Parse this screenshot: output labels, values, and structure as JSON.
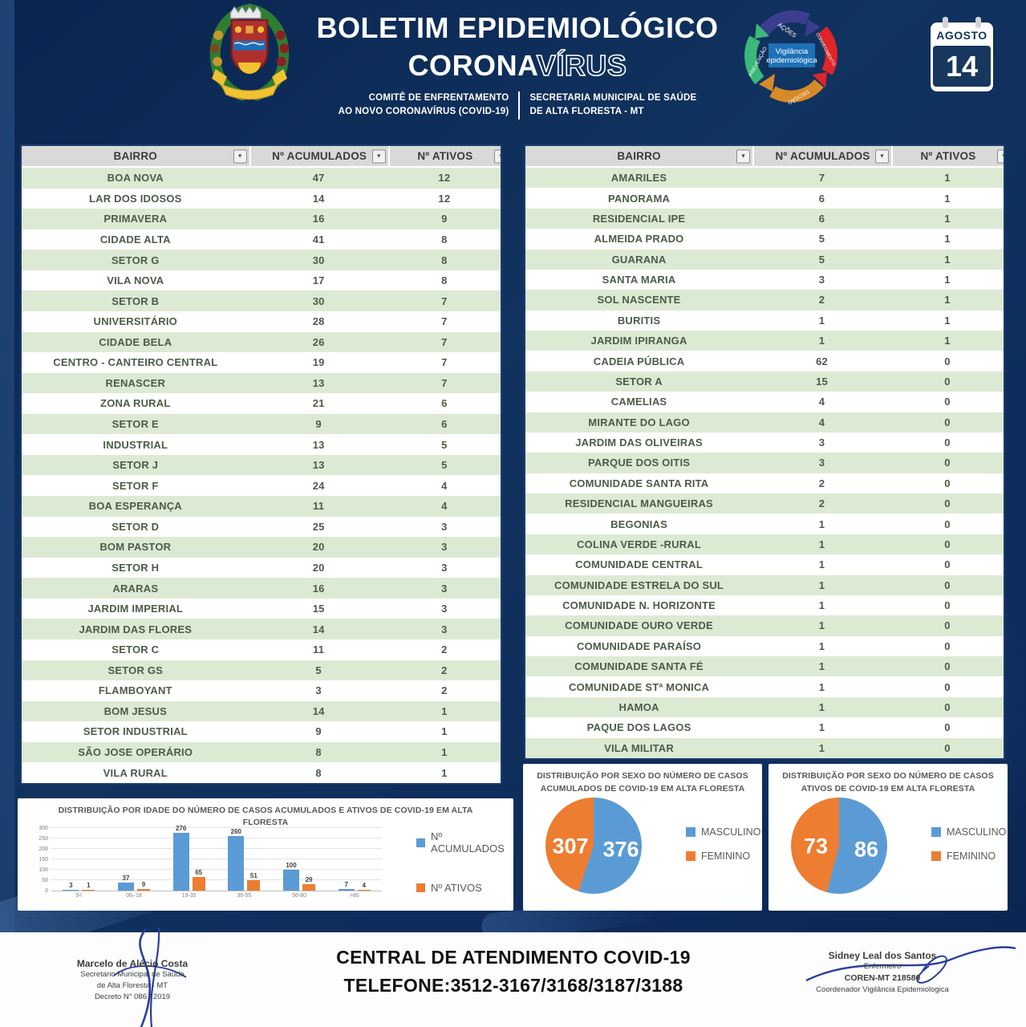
{
  "header": {
    "title_line1": "BOLETIM EPIDEMIOLÓGICO",
    "title_line2_solid": "CORONA",
    "title_line2_outline": "VÍRUS",
    "subtitle_left_line1": "COMITÊ DE ENFRENTAMENTO",
    "subtitle_left_line2": "AO NOVO CORONAVÍRUS (COVID-19)",
    "subtitle_right_line1": "SECRETARIA MUNICIPAL DE SAÚDE",
    "subtitle_right_line2": "DE ALTA FLORESTA - MT",
    "cycle_logo": {
      "center_line1": "Vigilância",
      "center_line2": "epidemiológica",
      "labels": [
        "AÇÕES",
        "CONHECIMENTO",
        "DECISÃO",
        "PREVENÇÃO"
      ]
    },
    "calendar": {
      "month": "AGOSTO",
      "day": "14"
    }
  },
  "tables": {
    "headers": {
      "bairro": "BAIRRO",
      "acumulados": "Nº ACUMULADOS",
      "ativos": "Nº ATIVOS"
    },
    "left_rows": [
      [
        "BOA NOVA",
        47,
        12
      ],
      [
        "LAR DOS IDOSOS",
        14,
        12
      ],
      [
        "PRIMAVERA",
        16,
        9
      ],
      [
        "CIDADE ALTA",
        41,
        8
      ],
      [
        "SETOR G",
        30,
        8
      ],
      [
        "VILA NOVA",
        17,
        8
      ],
      [
        "SETOR B",
        30,
        7
      ],
      [
        "UNIVERSITÁRIO",
        28,
        7
      ],
      [
        "CIDADE BELA",
        26,
        7
      ],
      [
        "CENTRO - CANTEIRO CENTRAL",
        19,
        7
      ],
      [
        "RENASCER",
        13,
        7
      ],
      [
        "ZONA RURAL",
        21,
        6
      ],
      [
        "SETOR E",
        9,
        6
      ],
      [
        "INDUSTRIAL",
        13,
        5
      ],
      [
        "SETOR J",
        13,
        5
      ],
      [
        "SETOR F",
        24,
        4
      ],
      [
        "BOA ESPERANÇA",
        11,
        4
      ],
      [
        "SETOR D",
        25,
        3
      ],
      [
        "BOM PASTOR",
        20,
        3
      ],
      [
        "SETOR H",
        20,
        3
      ],
      [
        "ARARAS",
        16,
        3
      ],
      [
        "JARDIM IMPERIAL",
        15,
        3
      ],
      [
        "JARDIM DAS FLORES",
        14,
        3
      ],
      [
        "SETOR C",
        11,
        2
      ],
      [
        "SETOR GS",
        5,
        2
      ],
      [
        "FLAMBOYANT",
        3,
        2
      ],
      [
        "BOM JESUS",
        14,
        1
      ],
      [
        "SETOR INDUSTRIAL",
        9,
        1
      ],
      [
        "SÃO JOSE OPERÁRIO",
        8,
        1
      ],
      [
        "VILA RURAL",
        8,
        1
      ]
    ],
    "right_rows": [
      [
        "AMARILES",
        7,
        1
      ],
      [
        "PANORAMA",
        6,
        1
      ],
      [
        "RESIDENCIAL IPE",
        6,
        1
      ],
      [
        "ALMEIDA PRADO",
        5,
        1
      ],
      [
        "GUARANA",
        5,
        1
      ],
      [
        "SANTA MARIA",
        3,
        1
      ],
      [
        "SOL NASCENTE",
        2,
        1
      ],
      [
        "BURITIS",
        1,
        1
      ],
      [
        "JARDIM IPIRANGA",
        1,
        1
      ],
      [
        "CADEIA PÚBLICA",
        62,
        0
      ],
      [
        "SETOR A",
        15,
        0
      ],
      [
        "CAMELIAS",
        4,
        0
      ],
      [
        "MIRANTE DO LAGO",
        4,
        0
      ],
      [
        "JARDIM DAS OLIVEIRAS",
        3,
        0
      ],
      [
        "PARQUE DOS OITIS",
        3,
        0
      ],
      [
        "COMUNIDADE SANTA RITA",
        2,
        0
      ],
      [
        "RESIDENCIAL MANGUEIRAS",
        2,
        0
      ],
      [
        "BEGONIAS",
        1,
        0
      ],
      [
        "COLINA VERDE -RURAL",
        1,
        0
      ],
      [
        "COMUNIDADE CENTRAL",
        1,
        0
      ],
      [
        "COMUNIDADE ESTRELA DO SUL",
        1,
        0
      ],
      [
        "COMUNIDADE N. HORIZONTE",
        1,
        0
      ],
      [
        "COMUNIDADE OURO VERDE",
        1,
        0
      ],
      [
        "COMUNIDADE PARAÍSO",
        1,
        0
      ],
      [
        "COMUNIDADE SANTA FÉ",
        1,
        0
      ],
      [
        "COMUNIDADE STª MONICA",
        1,
        0
      ],
      [
        "HAMOA",
        1,
        0
      ],
      [
        "PAQUE DOS LAGOS",
        1,
        0
      ],
      [
        "VILA MILITAR",
        1,
        0
      ]
    ]
  },
  "chart_data": [
    {
      "type": "bar",
      "title": "DISTRIBUIÇÃO POR IDADE DO NÚMERO DE CASOS ACUMULADOS E ATIVOS DE COVID-19 EM ALTA FLORESTA",
      "categories": [
        "5<",
        "06–18",
        "19-35",
        "36-55",
        "56-80",
        ">80"
      ],
      "series": [
        {
          "name": "Nº ACUMULADOS",
          "color": "#5b9bd5",
          "values": [
            3,
            37,
            276,
            260,
            100,
            7
          ]
        },
        {
          "name": "Nº ATIVOS",
          "color": "#ed7d31",
          "values": [
            1,
            9,
            65,
            51,
            29,
            4
          ]
        }
      ],
      "xlabel": "",
      "ylabel": "",
      "ylim": [
        0,
        300
      ],
      "yticks": [
        0,
        50,
        100,
        150,
        200,
        250,
        300
      ],
      "grid": true,
      "legend_position": "right"
    },
    {
      "type": "pie",
      "title_line1": "DISTRIBUIÇÃO POR SEXO DO NÚMERO DE CASOS",
      "title_line2": "ACUMULADOS DE COVID-19 EM ALTA FLORESTA",
      "labels": [
        "MASCULINO",
        "FEMININO"
      ],
      "values": [
        376,
        307
      ],
      "colors": [
        "#5b9bd5",
        "#ed7d31"
      ],
      "legend_position": "right"
    },
    {
      "type": "pie",
      "title_line1": "DISTRIBUIÇÃO POR SEXO DO NÚMERO DE CASOS",
      "title_line2": "ATIVOS DE COVID-19 EM ALTA FLORESTA",
      "labels": [
        "MASCULINO",
        "FEMININO"
      ],
      "values": [
        86,
        73
      ],
      "colors": [
        "#5b9bd5",
        "#ed7d31"
      ],
      "legend_position": "right"
    }
  ],
  "footer": {
    "left_signature": {
      "name": "Marcelo de Alécio Costa",
      "line2": "Secretario Municipal de Saude",
      "line3": "de Alta Floresta - MT",
      "line4": "Decreto N° 086 / 2019"
    },
    "hotline": {
      "line1": "CENTRAL  DE ATENDIMENTO COVID-19",
      "line2": "TELEFONE:3512-3167/3168/3187/3188"
    },
    "right_signature": {
      "name": "Sidney Leal dos Santos",
      "line2": "Enfermeiro",
      "line3": "COREN-MT 218580",
      "line4": "Coordenador Vigilância Epidemiologica"
    }
  },
  "colors": {
    "background_navy": "#0d2b5b",
    "table_green_row": "#dcead3",
    "table_border": "#1c3c6e",
    "series_blue": "#5b9bd5",
    "series_orange": "#ed7d31",
    "calendar_navy": "#17375e"
  }
}
